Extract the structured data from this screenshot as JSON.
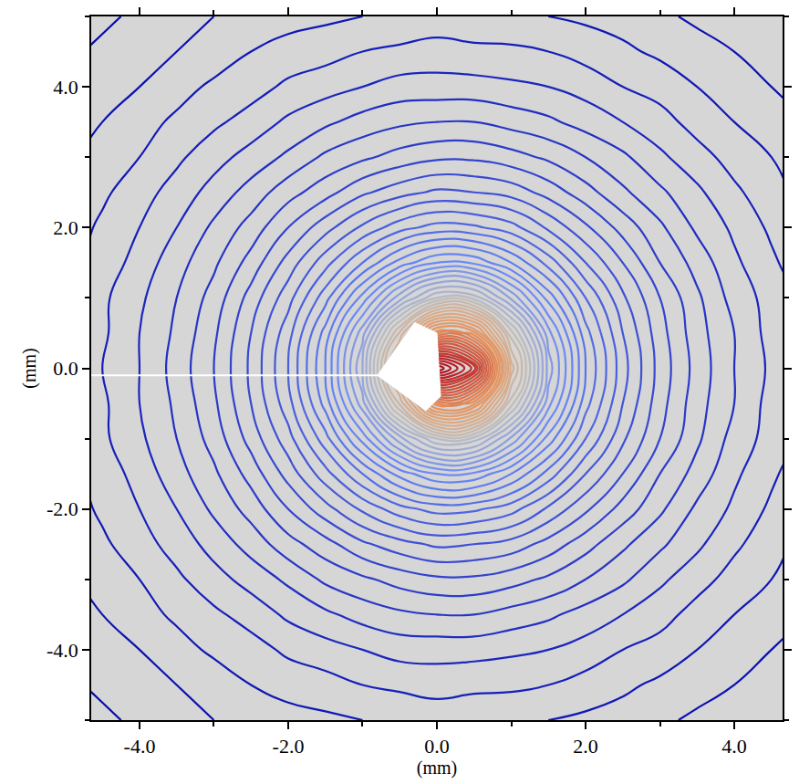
{
  "chart_data": {
    "type": "contour",
    "x_label": "(mm)",
    "y_label": "(mm)",
    "color": "#2b2b2b",
    "xlim": [
      -4.65,
      4.65
    ],
    "ylim": [
      -5,
      5
    ],
    "xticks": [
      {
        "value": -4,
        "label": "-4.0"
      },
      {
        "value": -2,
        "label": "-2.0"
      },
      {
        "value": 0,
        "label": "0.0"
      },
      {
        "value": 2,
        "label": "2.0"
      },
      {
        "value": 4,
        "label": "4.0"
      }
    ],
    "yticks": [
      {
        "value": -4,
        "label": "-4.0"
      },
      {
        "value": -2,
        "label": "-2.0"
      },
      {
        "value": 0,
        "label": "0.0"
      },
      {
        "value": 2,
        "label": "2.0"
      },
      {
        "value": 4,
        "label": "4.0"
      }
    ],
    "x": [
      -5,
      -4.5,
      -4,
      -3.5,
      -3,
      -2.5,
      -2,
      -1.5,
      -1,
      -0.5,
      0,
      0.5,
      1,
      1.5,
      2,
      2.5,
      3,
      3.5,
      4,
      4.5,
      5
    ],
    "y": [
      -5,
      -4.5,
      -4,
      -3.5,
      -3,
      -2.5,
      -2,
      -1.5,
      -1,
      -0.5,
      0,
      0.5,
      1,
      1.5,
      2,
      2.5,
      3,
      3.5,
      4,
      4.5,
      5
    ],
    "z": [
      [
        3.7,
        3.9,
        4.1,
        4.3,
        4.5,
        4.6,
        4.8,
        4.9,
        5.0,
        5.1,
        5.2,
        5.2,
        5.1,
        5.0,
        4.9,
        4.8,
        4.6,
        4.4,
        4.2,
        4.1,
        3.9
      ],
      [
        3.9,
        4.1,
        4.3,
        4.5,
        4.7,
        5.0,
        5.2,
        5.3,
        5.5,
        5.6,
        5.7,
        5.6,
        5.6,
        5.5,
        5.3,
        5.1,
        4.9,
        4.7,
        4.5,
        4.3,
        4.1
      ],
      [
        4.1,
        4.3,
        4.5,
        4.8,
        5.1,
        5.3,
        5.6,
        5.8,
        6.0,
        6.2,
        6.2,
        6.2,
        6.1,
        6.0,
        5.8,
        5.5,
        5.3,
        5.0,
        4.7,
        4.5,
        4.3
      ],
      [
        4.2,
        4.5,
        4.8,
        5.1,
        5.4,
        5.7,
        6.1,
        6.4,
        6.7,
        6.9,
        7.0,
        7.0,
        6.8,
        6.6,
        6.3,
        6.0,
        5.7,
        5.3,
        5.0,
        4.7,
        4.5
      ],
      [
        4.4,
        4.7,
        5.0,
        5.4,
        5.8,
        6.2,
        6.6,
        7.1,
        7.4,
        7.7,
        7.9,
        7.9,
        7.7,
        7.4,
        7.0,
        6.6,
        6.1,
        5.7,
        5.3,
        5.0,
        4.6
      ],
      [
        4.6,
        4.9,
        5.3,
        5.7,
        6.2,
        6.7,
        7.3,
        7.8,
        8.4,
        8.8,
        9.1,
        9.0,
        8.8,
        8.3,
        7.7,
        7.1,
        6.6,
        6.1,
        5.6,
        5.2,
        4.8
      ],
      [
        4.7,
        5.1,
        5.5,
        6.0,
        6.6,
        7.2,
        8.0,
        8.8,
        9.6,
        10.3,
        10.7,
        10.6,
        10.2,
        9.4,
        8.6,
        7.8,
        7.1,
        6.4,
        5.9,
        5.4,
        5.0
      ],
      [
        4.8,
        5.2,
        5.7,
        6.3,
        6.9,
        7.7,
        8.7,
        9.8,
        11.0,
        12.2,
        13.0,
        12.9,
        12.0,
        10.8,
        9.5,
        8.5,
        7.5,
        6.8,
        6.1,
        5.6,
        5.1
      ],
      [
        4.9,
        5.4,
        5.9,
        6.5,
        7.2,
        8.2,
        9.3,
        10.8,
        12.7,
        14.8,
        16.5,
        16.3,
        14.4,
        12.3,
        10.5,
        9.1,
        8.0,
        7.1,
        6.3,
        5.8,
        5.3
      ],
      [
        5.0,
        5.4,
        6.0,
        6.6,
        7.4,
        8.5,
        9.8,
        11.7,
        14.3,
        18.1,
        22.4,
        21.7,
        17.2,
        13.7,
        11.2,
        9.5,
        8.2,
        7.2,
        6.5,
        5.8,
        5.3
      ],
      [
        5.0,
        5.5,
        6.0,
        6.7,
        7.5,
        8.6,
        10.0,
        12.0,
        15.0,
        20.0,
        30.0,
        27.3,
        18.8,
        14.3,
        11.5,
        9.7,
        8.3,
        7.3,
        6.5,
        5.9,
        5.4
      ],
      [
        5.0,
        5.4,
        6.0,
        6.6,
        7.4,
        8.5,
        9.8,
        11.7,
        14.3,
        18.1,
        22.4,
        21.7,
        17.2,
        13.7,
        11.2,
        9.5,
        8.2,
        7.2,
        6.5,
        5.8,
        5.3
      ],
      [
        4.9,
        5.4,
        5.9,
        6.5,
        7.2,
        8.2,
        9.3,
        10.8,
        12.7,
        14.8,
        16.5,
        16.3,
        14.4,
        12.3,
        10.5,
        9.1,
        8.0,
        7.1,
        6.3,
        5.8,
        5.3
      ],
      [
        4.8,
        5.2,
        5.7,
        6.3,
        6.9,
        7.7,
        8.7,
        9.8,
        11.0,
        12.2,
        13.0,
        12.9,
        12.0,
        10.8,
        9.5,
        8.5,
        7.5,
        6.8,
        6.1,
        5.6,
        5.1
      ],
      [
        4.7,
        5.1,
        5.5,
        6.0,
        6.6,
        7.2,
        8.0,
        8.8,
        9.6,
        10.3,
        10.7,
        10.6,
        10.2,
        9.4,
        8.6,
        7.8,
        7.1,
        6.4,
        5.9,
        5.4,
        5.0
      ],
      [
        4.6,
        4.9,
        5.3,
        5.7,
        6.2,
        6.7,
        7.3,
        7.8,
        8.4,
        8.8,
        9.1,
        9.0,
        8.8,
        8.3,
        7.7,
        7.1,
        6.6,
        6.1,
        5.6,
        5.2,
        4.8
      ],
      [
        4.4,
        4.7,
        5.0,
        5.4,
        5.8,
        6.2,
        6.6,
        7.1,
        7.4,
        7.7,
        7.9,
        7.9,
        7.7,
        7.4,
        7.0,
        6.6,
        6.1,
        5.7,
        5.3,
        5.0,
        4.6
      ],
      [
        4.2,
        4.5,
        4.8,
        5.1,
        5.4,
        5.7,
        6.1,
        6.4,
        6.7,
        6.9,
        7.0,
        7.0,
        6.8,
        6.6,
        6.3,
        6.0,
        5.7,
        5.3,
        5.0,
        4.7,
        4.5
      ],
      [
        4.1,
        4.3,
        4.5,
        4.8,
        5.1,
        5.3,
        5.6,
        5.8,
        6.0,
        6.2,
        6.2,
        6.2,
        6.1,
        6.0,
        5.8,
        5.5,
        5.3,
        5.0,
        4.7,
        4.5,
        4.3
      ],
      [
        3.9,
        4.1,
        4.3,
        4.5,
        4.7,
        5.0,
        5.2,
        5.3,
        5.5,
        5.6,
        5.7,
        5.6,
        5.6,
        5.5,
        5.3,
        5.1,
        4.9,
        4.7,
        4.5,
        4.3,
        4.1
      ],
      [
        3.7,
        3.9,
        4.1,
        4.3,
        4.5,
        4.6,
        4.8,
        4.9,
        5.0,
        5.1,
        5.2,
        5.2,
        5.1,
        5.0,
        4.9,
        4.8,
        4.6,
        4.4,
        4.2,
        4.1,
        3.9
      ]
    ],
    "crack": {
      "x": [
        -5,
        -0.6
      ],
      "y": [
        -0.1,
        -0.1
      ]
    },
    "shadow": {
      "x": [
        -0.8,
        -0.3,
        0.0,
        0.05,
        -0.15,
        -0.8
      ],
      "y": [
        -0.1,
        0.65,
        0.5,
        -0.4,
        -0.6,
        -0.1
      ]
    }
  }
}
